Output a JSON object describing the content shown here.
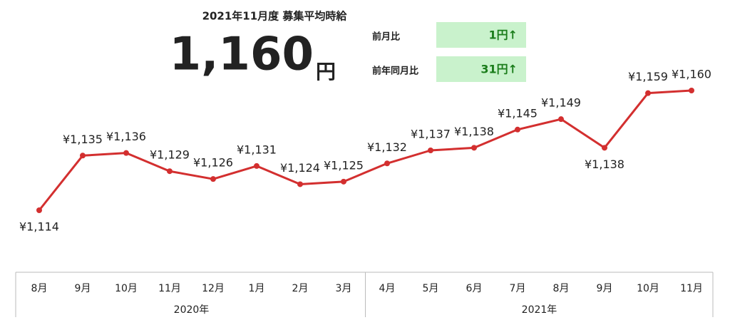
{
  "header": {
    "title": "2021年11月度 募集平均時給",
    "amount": "1,160",
    "unit": "円",
    "comparisons": [
      {
        "label": "前月比",
        "value": "1円↑"
      },
      {
        "label": "前年同月比",
        "value": "31円↑"
      }
    ]
  },
  "chart_data": {
    "type": "line",
    "categories": [
      "8月",
      "9月",
      "10月",
      "11月",
      "12月",
      "1月",
      "2月",
      "3月",
      "4月",
      "5月",
      "6月",
      "7月",
      "8月",
      "9月",
      "10月",
      "11月"
    ],
    "groups": [
      {
        "label": "2020年",
        "count": 8
      },
      {
        "label": "2021年",
        "count": 8
      }
    ],
    "series": [
      {
        "color": "#d32f2f",
        "values": [
          1114,
          1135,
          1136,
          1129,
          1126,
          1131,
          1124,
          1125,
          1132,
          1137,
          1138,
          1145,
          1149,
          1138,
          1159,
          1160
        ],
        "value_labels": [
          "¥1,114",
          "¥1,135",
          "¥1,136",
          "¥1,129",
          "¥1,126",
          "¥1,131",
          "¥1,124",
          "¥1,125",
          "¥1,132",
          "¥1,137",
          "¥1,138",
          "¥1,145",
          "¥1,149",
          "¥1,138",
          "¥1,159",
          "¥1,160"
        ]
      }
    ]
  }
}
